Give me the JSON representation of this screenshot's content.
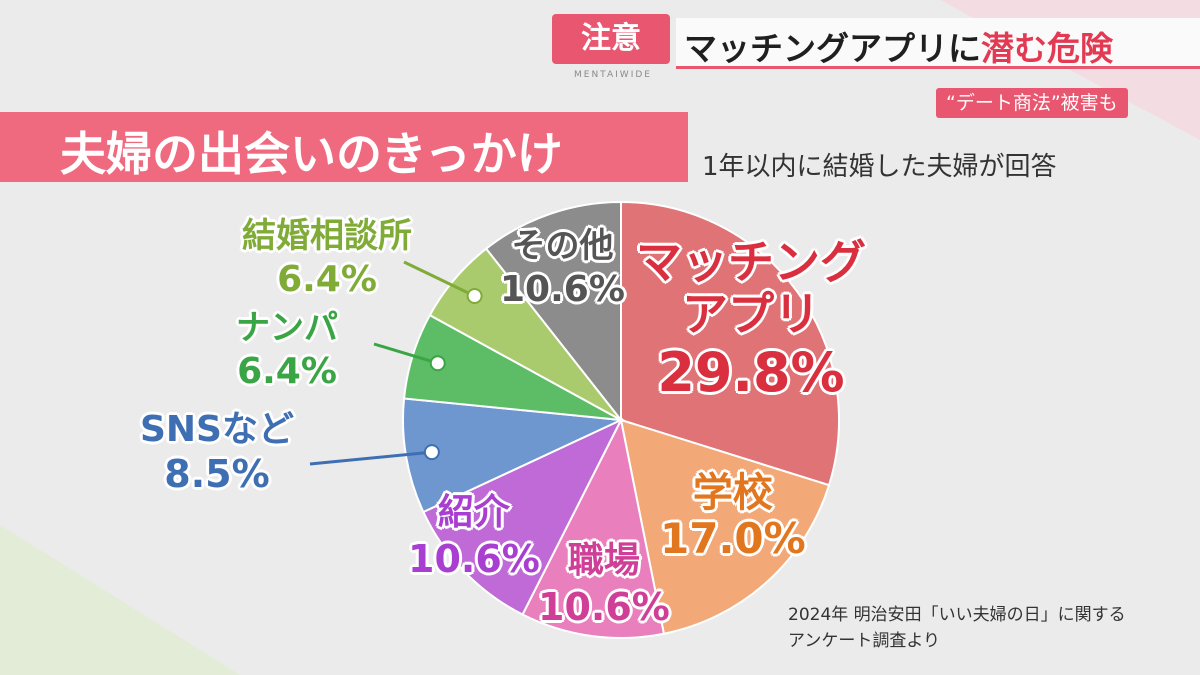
{
  "header": {
    "tag": "注意",
    "tag_sub": "MENTAIWIDE",
    "title_plain": "マッチングアプリに",
    "title_highlight": "潜む危険",
    "subtag": "“デート商法”被害も"
  },
  "title": "夫婦の出会いのきっかけ",
  "subtitle": "1年以内に結婚した夫婦が回答",
  "source_line1": "2024年 明治安田「いい夫婦の日」に関する",
  "source_line2": "アンケート調査より",
  "chart_data": {
    "type": "pie",
    "title": "夫婦の出会いのきっかけ",
    "slices": [
      {
        "name": "マッチングアプリ",
        "value": 29.8,
        "label": "29.8%",
        "color": "#e07375"
      },
      {
        "name": "学校",
        "value": 17.0,
        "label": "17.0%",
        "color": "#f2a877"
      },
      {
        "name": "職場",
        "value": 10.6,
        "label": "10.6%",
        "color": "#ea7fbe"
      },
      {
        "name": "紹介",
        "value": 10.6,
        "label": "10.6%",
        "color": "#c06ad8"
      },
      {
        "name": "SNSなど",
        "value": 8.5,
        "label": "8.5%",
        "color": "#6e96cf"
      },
      {
        "name": "ナンパ",
        "value": 6.4,
        "label": "6.4%",
        "color": "#5cbd66"
      },
      {
        "name": "結婚相談所",
        "value": 6.4,
        "label": "6.4%",
        "color": "#a9cb6e"
      },
      {
        "name": "その他",
        "value": 10.6,
        "label": "10.6%",
        "color": "#8c8c8c"
      }
    ],
    "label_colors": {
      "マッチングアプリ": "#d92f3f",
      "学校": "#e2761f",
      "職場": "#cf3f97",
      "紹介": "#a93fd0",
      "SNSなど": "#3f6fb3",
      "ナンパ": "#3aa545",
      "結婚相談所": "#7fab36",
      "その他": "#555555"
    }
  }
}
